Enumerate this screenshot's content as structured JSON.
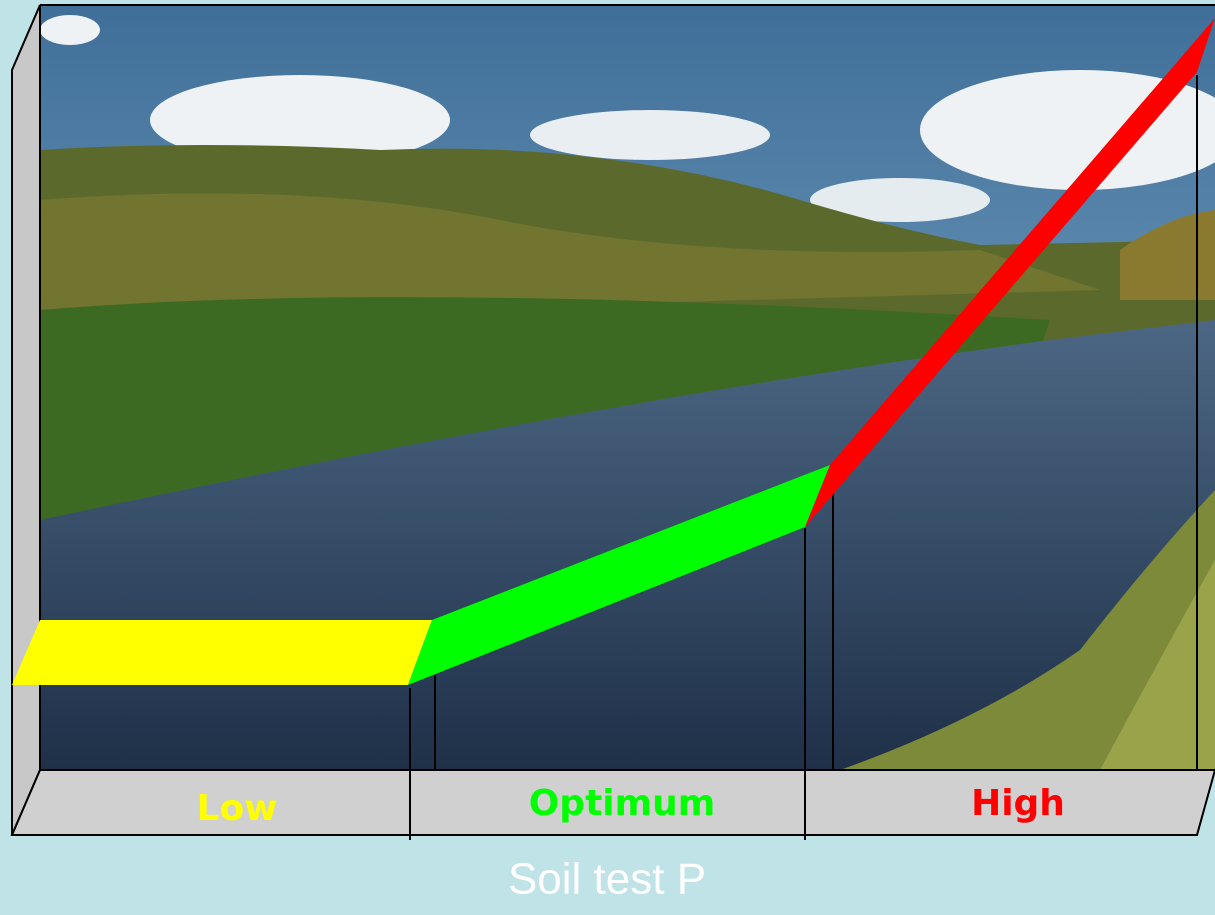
{
  "zones": [
    {
      "label": "Low"
    },
    {
      "label": "Optimum"
    },
    {
      "label": "High"
    }
  ],
  "x_axis": {
    "label": "Soil test P"
  }
}
